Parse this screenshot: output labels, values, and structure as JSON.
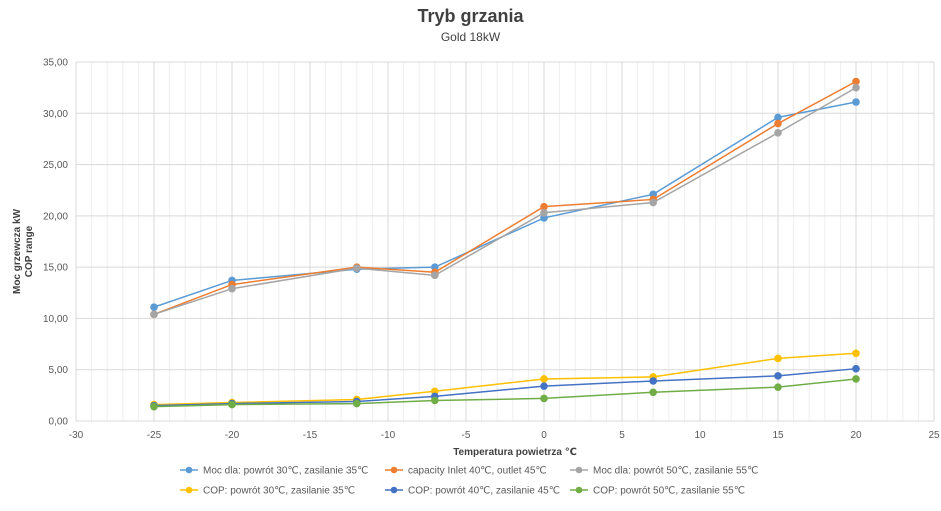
{
  "chart_data": {
    "type": "line",
    "title": "Tryb grzania",
    "subtitle": "Gold 18kW",
    "xlabel": "Temperatura powietrza ℃",
    "ylabel": [
      "Moc grzewcza kW",
      "COP range"
    ],
    "xlim": [
      -30,
      25
    ],
    "ylim": [
      0,
      35
    ],
    "xticks": [
      -30,
      -25,
      -20,
      -15,
      -10,
      -5,
      0,
      5,
      10,
      15,
      20,
      25
    ],
    "yticks": [
      "0,00",
      "5,00",
      "10,00",
      "15,00",
      "20,00",
      "25,00",
      "30,00",
      "35,00"
    ],
    "x": [
      -25,
      -20,
      -12,
      -7,
      0,
      7,
      15,
      20
    ],
    "legend_position": "bottom",
    "grid": true,
    "series": [
      {
        "name": "Moc dla: powrót 30℃, zasilanie 35℃",
        "color": "#5B9BD5",
        "values": [
          11.1,
          13.7,
          14.8,
          15.0,
          19.8,
          22.1,
          29.6,
          31.1
        ]
      },
      {
        "name": "capacity Inlet 40℃, outlet 45℃",
        "color": "#ED7D31",
        "values": [
          10.4,
          13.3,
          15.0,
          14.5,
          20.9,
          21.6,
          29.0,
          33.1
        ]
      },
      {
        "name": "Moc dla: powrót 50℃, zasilanie 55℃",
        "color": "#A5A5A5",
        "values": [
          10.4,
          12.9,
          14.9,
          14.2,
          20.3,
          21.3,
          28.1,
          32.5
        ]
      },
      {
        "name": "COP: powrót 30℃, zasilanie 35℃",
        "color": "#FFC000",
        "values": [
          1.6,
          1.8,
          2.1,
          2.9,
          4.1,
          4.3,
          6.1,
          6.6
        ]
      },
      {
        "name": "COP: powrót 40℃, zasilanie 45℃",
        "color": "#4472C4",
        "values": [
          1.5,
          1.7,
          1.9,
          2.4,
          3.4,
          3.9,
          4.4,
          5.1
        ]
      },
      {
        "name": "COP: powrót 50℃, zasilanie 55℃",
        "color": "#70AD47",
        "values": [
          1.4,
          1.6,
          1.7,
          2.0,
          2.2,
          2.8,
          3.3,
          4.1
        ]
      }
    ]
  }
}
